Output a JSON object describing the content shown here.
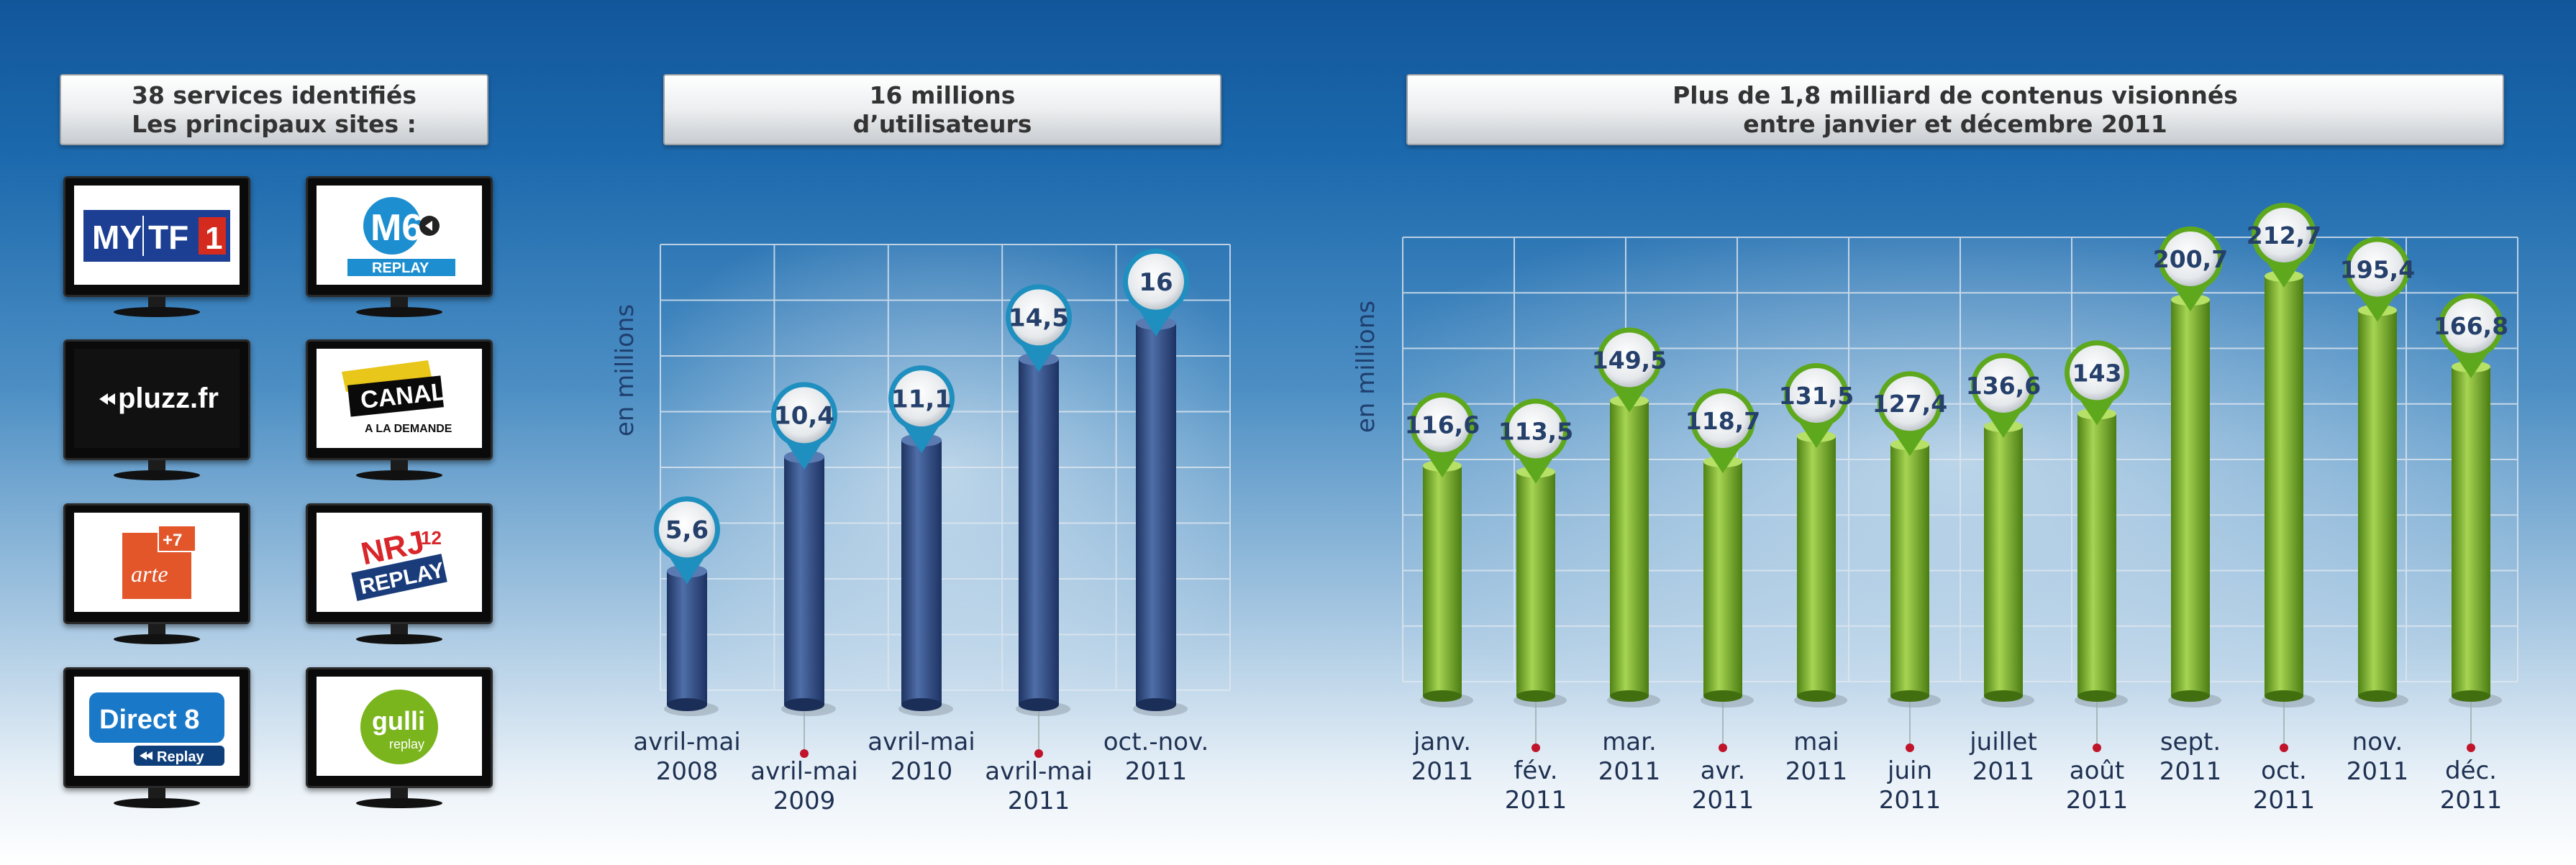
{
  "left_panel": {
    "header_line1": "38 services identifiés",
    "header_line2": "Les principaux sites :",
    "services": [
      {
        "name": "MYTF1",
        "icon": "mytf1-logo"
      },
      {
        "name": "M6 REPLAY",
        "icon": "m6-replay-logo"
      },
      {
        "name": "pluzz.fr",
        "icon": "pluzz-logo"
      },
      {
        "name": "CANAL+ A LA DEMANDE",
        "icon": "canal-plus-logo"
      },
      {
        "name": "arte +7",
        "icon": "arte-logo"
      },
      {
        "name": "NRJ12 REPLAY",
        "icon": "nrj12-logo"
      },
      {
        "name": "Direct 8 Replay",
        "icon": "direct8-logo"
      },
      {
        "name": "gulli replay",
        "icon": "gulli-logo"
      }
    ]
  },
  "colors": {
    "blue_bar": "#2e4a7e",
    "green_bar": "#74ab22",
    "blue_marker": "#1f8fbf",
    "green_marker": "#5ea81e",
    "axis_label": "#1f3f6e"
  },
  "chart_data": [
    {
      "type": "bar",
      "title_line1": "16 millions",
      "title_line2": "d’utilisateurs",
      "ylabel": "en millions",
      "xlabel": "",
      "ylim": [
        0,
        17.5
      ],
      "grid": true,
      "categories": [
        [
          "avril-mai",
          "2008"
        ],
        [
          "avril-mai",
          "2009"
        ],
        [
          "avril-mai",
          "2010"
        ],
        [
          "avril-mai",
          "2011"
        ],
        [
          "oct.-nov.",
          "2011"
        ]
      ],
      "values": [
        5.6,
        10.4,
        11.1,
        14.5,
        16
      ],
      "value_labels": [
        "5,6",
        "10,4",
        "11,1",
        "14,5",
        "16"
      ]
    },
    {
      "type": "bar",
      "title_line1": "Plus de 1,8 milliard de contenus visionnés",
      "title_line2": "entre janvier et décembre 2011",
      "ylabel": "en millions",
      "xlabel": "",
      "ylim": [
        0,
        228
      ],
      "grid": true,
      "categories": [
        [
          "janv.",
          "2011"
        ],
        [
          "fév.",
          "2011"
        ],
        [
          "mar.",
          "2011"
        ],
        [
          "avr.",
          "2011"
        ],
        [
          "mai",
          "2011"
        ],
        [
          "juin",
          "2011"
        ],
        [
          "juillet",
          "2011"
        ],
        [
          "août",
          "2011"
        ],
        [
          "sept.",
          "2011"
        ],
        [
          "oct.",
          "2011"
        ],
        [
          "nov.",
          "2011"
        ],
        [
          "déc.",
          "2011"
        ]
      ],
      "values": [
        116.6,
        113.5,
        149.5,
        118.7,
        131.5,
        127.4,
        136.6,
        143,
        200.7,
        212.7,
        195.4,
        166.8
      ],
      "value_labels": [
        "116,6",
        "113,5",
        "149,5",
        "118,7",
        "131,5",
        "127,4",
        "136,6",
        "143",
        "200,7",
        "212,7",
        "195,4",
        "166,8"
      ]
    }
  ]
}
